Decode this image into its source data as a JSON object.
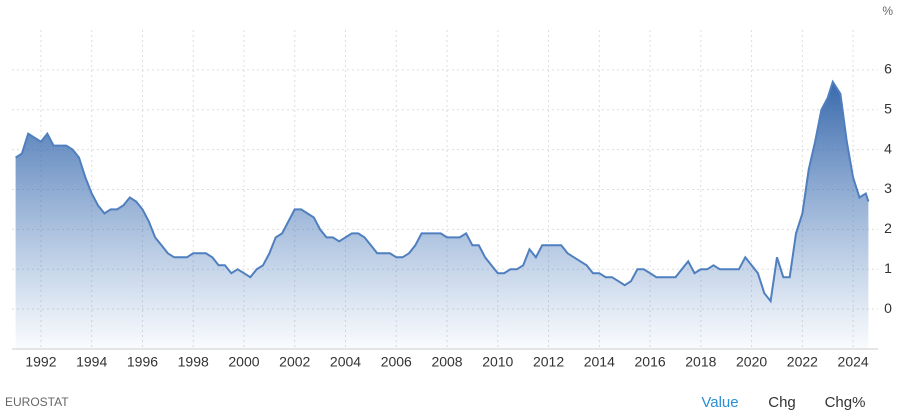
{
  "chart_data": {
    "type": "area",
    "unit": "%",
    "source": "EUROSTAT",
    "buttons": [
      "Value",
      "Chg",
      "Chg%"
    ],
    "color": "#4f7fbf",
    "grid": true,
    "xlim": [
      1990.86,
      2024.98
    ],
    "xticks": [
      1992,
      1994,
      1996,
      1998,
      2000,
      2002,
      2004,
      2006,
      2008,
      2010,
      2012,
      2014,
      2016,
      2018,
      2020,
      2022,
      2024
    ],
    "ylim": [
      -1,
      7
    ],
    "yticks": [
      0,
      1,
      2,
      3,
      4,
      5,
      6
    ],
    "x": [
      1991.0,
      1991.25,
      1991.5,
      1991.75,
      1992.0,
      1992.25,
      1992.5,
      1992.75,
      1993.0,
      1993.25,
      1993.5,
      1993.75,
      1994.0,
      1994.25,
      1994.5,
      1994.75,
      1995.0,
      1995.25,
      1995.5,
      1995.75,
      1996.0,
      1996.25,
      1996.5,
      1996.75,
      1997.0,
      1997.25,
      1997.5,
      1997.75,
      1998.0,
      1998.25,
      1998.5,
      1998.75,
      1999.0,
      1999.25,
      1999.5,
      1999.75,
      2000.0,
      2000.25,
      2000.5,
      2000.75,
      2001.0,
      2001.25,
      2001.5,
      2001.75,
      2002.0,
      2002.25,
      2002.5,
      2002.75,
      2003.0,
      2003.25,
      2003.5,
      2003.75,
      2004.0,
      2004.25,
      2004.5,
      2004.75,
      2005.0,
      2005.25,
      2005.5,
      2005.75,
      2006.0,
      2006.25,
      2006.5,
      2006.75,
      2007.0,
      2007.25,
      2007.5,
      2007.75,
      2008.0,
      2008.25,
      2008.5,
      2008.75,
      2009.0,
      2009.25,
      2009.5,
      2009.75,
      2010.0,
      2010.25,
      2010.5,
      2010.75,
      2011.0,
      2011.25,
      2011.5,
      2011.75,
      2012.0,
      2012.25,
      2012.5,
      2012.75,
      2013.0,
      2013.25,
      2013.5,
      2013.75,
      2014.0,
      2014.25,
      2014.5,
      2014.75,
      2015.0,
      2015.25,
      2015.5,
      2015.75,
      2016.0,
      2016.25,
      2016.5,
      2016.75,
      2017.0,
      2017.25,
      2017.5,
      2017.75,
      2018.0,
      2018.25,
      2018.5,
      2018.75,
      2019.0,
      2019.25,
      2019.5,
      2019.75,
      2020.0,
      2020.25,
      2020.5,
      2020.75,
      2021.0,
      2021.25,
      2021.5,
      2021.75,
      2022.0,
      2022.25,
      2022.5,
      2022.75,
      2023.0,
      2023.2,
      2023.5,
      2023.75,
      2024.0,
      2024.25,
      2024.5,
      2024.6
    ],
    "values": [
      3.8,
      3.9,
      4.4,
      4.3,
      4.2,
      4.4,
      4.1,
      4.1,
      4.1,
      4.0,
      3.8,
      3.3,
      2.9,
      2.6,
      2.4,
      2.5,
      2.5,
      2.6,
      2.8,
      2.7,
      2.5,
      2.2,
      1.8,
      1.6,
      1.4,
      1.3,
      1.3,
      1.3,
      1.4,
      1.4,
      1.4,
      1.3,
      1.1,
      1.1,
      0.9,
      1.0,
      0.9,
      0.8,
      1.0,
      1.1,
      1.4,
      1.8,
      1.9,
      2.2,
      2.5,
      2.5,
      2.4,
      2.3,
      2.0,
      1.8,
      1.8,
      1.7,
      1.8,
      1.9,
      1.9,
      1.8,
      1.6,
      1.4,
      1.4,
      1.4,
      1.3,
      1.3,
      1.4,
      1.6,
      1.9,
      1.9,
      1.9,
      1.9,
      1.8,
      1.8,
      1.8,
      1.9,
      1.6,
      1.6,
      1.3,
      1.1,
      0.9,
      0.9,
      1.0,
      1.0,
      1.1,
      1.5,
      1.3,
      1.6,
      1.6,
      1.6,
      1.6,
      1.4,
      1.3,
      1.2,
      1.1,
      0.9,
      0.9,
      0.8,
      0.8,
      0.7,
      0.6,
      0.7,
      1.0,
      1.0,
      0.9,
      0.8,
      0.8,
      0.8,
      0.8,
      1.0,
      1.2,
      0.9,
      1.0,
      1.0,
      1.1,
      1.0,
      1.0,
      1.0,
      1.0,
      1.3,
      1.1,
      0.9,
      0.4,
      0.2,
      1.3,
      0.8,
      0.8,
      1.9,
      2.4,
      3.5,
      4.2,
      5.0,
      5.3,
      5.7,
      5.4,
      4.2,
      3.3,
      2.8,
      2.9,
      2.7
    ]
  }
}
